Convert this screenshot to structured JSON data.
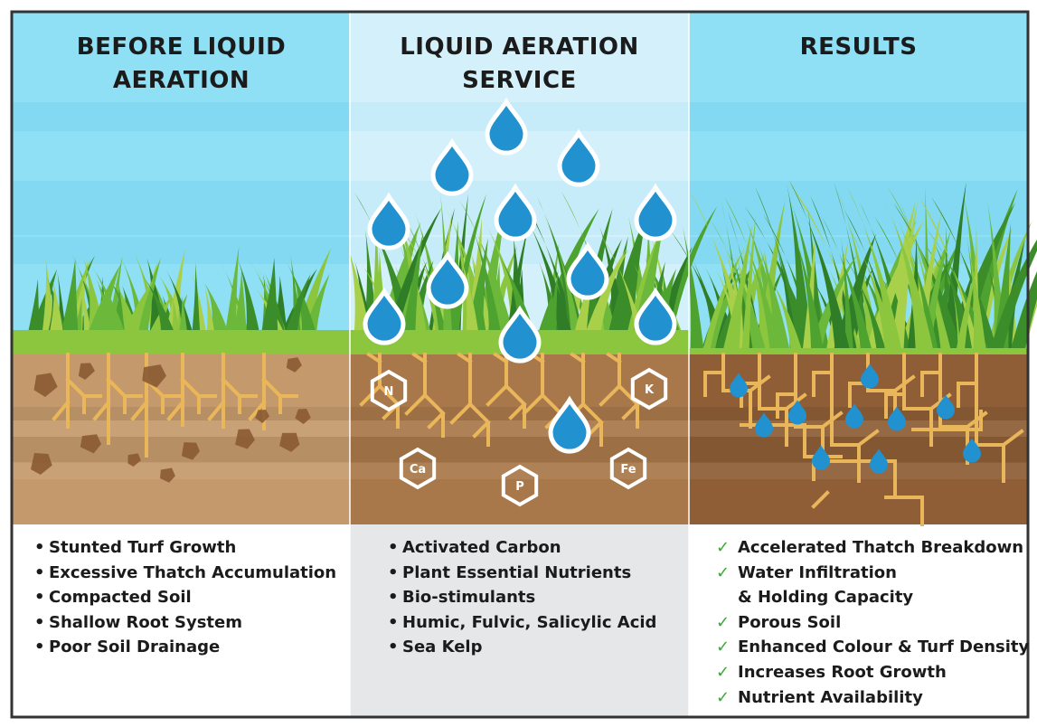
{
  "colors": {
    "sky": "#8fdff5",
    "sky_light": "#d3f0fb",
    "grass": "#8cc63f",
    "soil": "#b5865a",
    "soil_dark": "#8b5a33",
    "root": "#eab65a",
    "drop": "#2191cf",
    "check": "#3aa935",
    "panel_gray": "#e6e7e8"
  },
  "columns": [
    {
      "title_line1": "BEFORE LIQUID",
      "title_line2": "AERATION",
      "items": [
        "Stunted Turf Growth",
        "Excessive Thatch Accumulation",
        "Compacted Soil",
        "Shallow Root System",
        "Poor Soil Drainage"
      ]
    },
    {
      "title_line1": "LIQUID AERATION",
      "title_line2": "SERVICE",
      "items": [
        "Activated Carbon",
        "Plant Essential Nutrients",
        "Bio-stimulants",
        "Humic, Fulvic, Salicylic Acid",
        "Sea Kelp"
      ],
      "nutrients": [
        "N",
        "K",
        "Ca",
        "P",
        "Fe"
      ]
    },
    {
      "title_line1": "RESULTS",
      "title_line2": "",
      "items": [
        "Accelerated Thatch Breakdown",
        "Water Infiltration",
        "& Holding Capacity",
        "Porous Soil",
        "Enhanced Colour & Turf Density",
        "Increases Root Growth",
        "Nutrient Availability"
      ]
    }
  ],
  "bullet_icon": "bullet-dot",
  "check_icon": "check-mark"
}
